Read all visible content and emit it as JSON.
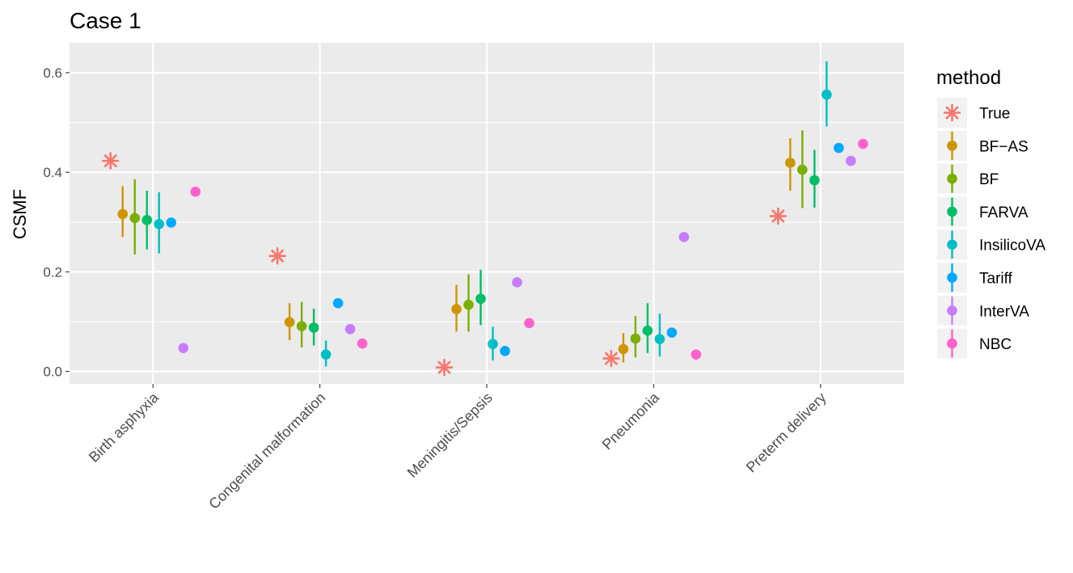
{
  "chart_data": {
    "type": "scatter",
    "title": "Case 1",
    "xlabel": "",
    "ylabel": "CSMF",
    "ylim": [
      -0.025,
      0.66
    ],
    "yticks": [
      0.0,
      0.2,
      0.4,
      0.6
    ],
    "ytick_labels": [
      "0.0",
      "0.2",
      "0.4",
      "0.6"
    ],
    "grid": true,
    "categories": [
      "Birth asphyxia",
      "Congenital malformation",
      "Meningitis/Sepsis",
      "Pneumonia",
      "Preterm delivery"
    ],
    "legend": {
      "title": "method",
      "position": "right"
    },
    "series": [
      {
        "name": "True",
        "color": "#F8766D",
        "marker": "asterisk",
        "values": [
          0.423,
          0.232,
          0.008,
          0.026,
          0.312
        ],
        "lower": null,
        "upper": null
      },
      {
        "name": "BF−AS",
        "color": "#CD9600",
        "marker": "circle",
        "values": [
          0.316,
          0.099,
          0.125,
          0.045,
          0.419
        ],
        "lower": [
          0.27,
          0.063,
          0.08,
          0.018,
          0.363
        ],
        "upper": [
          0.372,
          0.137,
          0.174,
          0.077,
          0.468
        ]
      },
      {
        "name": "BF",
        "color": "#7CAE00",
        "marker": "circle",
        "values": [
          0.308,
          0.091,
          0.134,
          0.066,
          0.405
        ],
        "lower": [
          0.235,
          0.048,
          0.08,
          0.028,
          0.328
        ],
        "upper": [
          0.386,
          0.14,
          0.195,
          0.111,
          0.484
        ]
      },
      {
        "name": "FARVA",
        "color": "#00BE67",
        "marker": "circle",
        "values": [
          0.304,
          0.088,
          0.146,
          0.082,
          0.384
        ],
        "lower": [
          0.245,
          0.052,
          0.093,
          0.037,
          0.329
        ],
        "upper": [
          0.363,
          0.126,
          0.204,
          0.137,
          0.445
        ]
      },
      {
        "name": "InsilicoVA",
        "color": "#00BFC4",
        "marker": "circle",
        "values": [
          0.296,
          0.034,
          0.055,
          0.065,
          0.556
        ],
        "lower": [
          0.237,
          0.01,
          0.022,
          0.03,
          0.492
        ],
        "upper": [
          0.36,
          0.062,
          0.09,
          0.116,
          0.623
        ]
      },
      {
        "name": "Tariff",
        "color": "#00A9FF",
        "marker": "circle",
        "values": [
          0.299,
          0.137,
          0.041,
          0.078,
          0.449
        ],
        "lower": null,
        "upper": null
      },
      {
        "name": "InterVA",
        "color": "#C77CFF",
        "marker": "circle",
        "values": [
          0.047,
          0.085,
          0.179,
          0.27,
          0.423
        ],
        "lower": null,
        "upper": null
      },
      {
        "name": "NBC",
        "color": "#FF61CC",
        "marker": "circle",
        "values": [
          0.361,
          0.056,
          0.097,
          0.034,
          0.457
        ],
        "lower": null,
        "upper": null
      }
    ]
  }
}
